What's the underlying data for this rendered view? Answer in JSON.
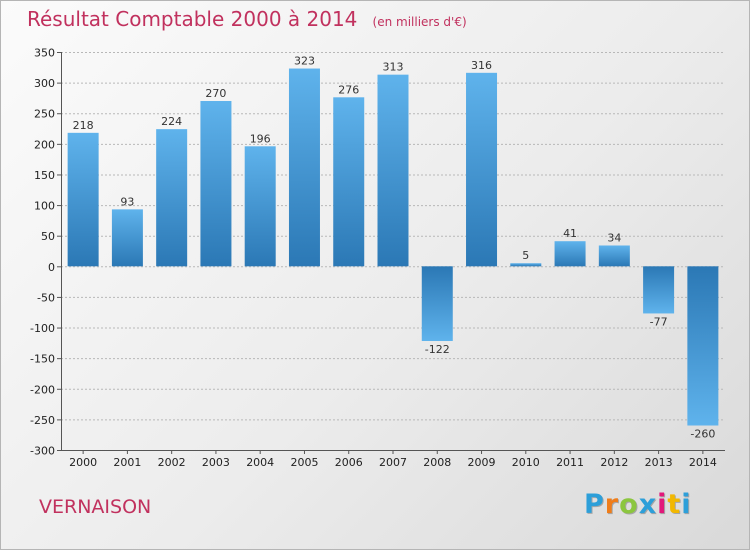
{
  "title": "Résultat Comptable 2000 à 2014",
  "subtitle": "(en milliers d'€)",
  "commune": "VERNAISON",
  "logo": {
    "text": "Proxiti",
    "letters": [
      "P",
      "r",
      "o",
      "x",
      "i",
      "t",
      "i"
    ],
    "colors": [
      "#2d9fd9",
      "#ef7d1a",
      "#8cc63f",
      "#2d9fd9",
      "#e2187a",
      "#f2b800",
      "#2d9fd9"
    ]
  },
  "colors": {
    "bar_light": "#5fb3ec",
    "bar_dark": "#2b78b5",
    "title": "#c1315e",
    "grid": "#b8b8b8"
  },
  "chart_data": {
    "type": "bar",
    "categories": [
      "2000",
      "2001",
      "2002",
      "2003",
      "2004",
      "2005",
      "2006",
      "2007",
      "2008",
      "2009",
      "2010",
      "2011",
      "2012",
      "2013",
      "2014"
    ],
    "values": [
      218,
      93,
      224,
      270,
      196,
      323,
      276,
      313,
      -122,
      316,
      5,
      41,
      34,
      -77,
      -260
    ],
    "value_labels": [
      "218",
      "93",
      "224",
      "270",
      "196",
      "323",
      "276",
      "313",
      "-122",
      "316",
      "5",
      "41",
      "34",
      "-77",
      "-260"
    ],
    "title": "Résultat Comptable 2000 à 2014",
    "xlabel": "",
    "ylabel": "",
    "ylim": [
      -300,
      350
    ],
    "yticks": [
      350,
      300,
      250,
      200,
      150,
      100,
      50,
      0,
      -50,
      -100,
      -150,
      -200,
      -250,
      -300
    ],
    "ytick_labels": [
      "350",
      "300",
      "250",
      "200",
      "150",
      "100",
      "50",
      "0",
      "-50",
      "-100",
      "-150",
      "-200",
      "-250",
      "-300"
    ],
    "grid": true,
    "legend": "none"
  }
}
